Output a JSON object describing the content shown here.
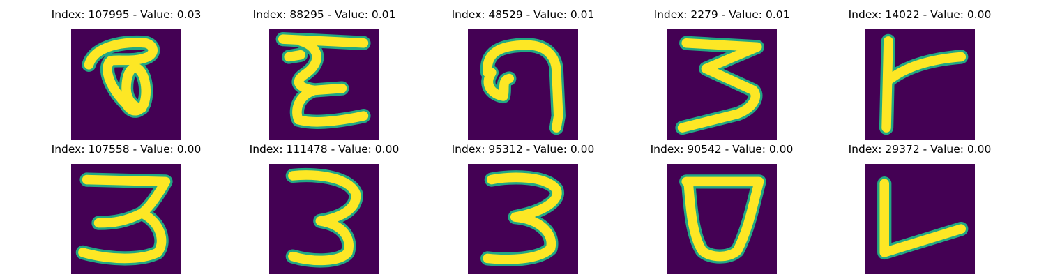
{
  "colors": {
    "background": "#440154",
    "stroke": "#fde725",
    "edge": "#22a884"
  },
  "figure": {
    "tiles": [
      {
        "title": "Index: 107995 - Value: 0.03",
        "glyph": "curl-a"
      },
      {
        "title": "Index: 88295 - Value: 0.01",
        "glyph": "sigma-e"
      },
      {
        "title": "Index: 48529 - Value: 0.01",
        "glyph": "hook-g"
      },
      {
        "title": "Index: 2279 - Value: 0.01",
        "glyph": "zigzag-3"
      },
      {
        "title": "Index: 14022 - Value: 0.00",
        "glyph": "tee-r"
      },
      {
        "title": "Index: 107558 - Value: 0.00",
        "glyph": "three-wide"
      },
      {
        "title": "Index: 111478 - Value: 0.00",
        "glyph": "three-round"
      },
      {
        "title": "Index: 95312 - Value: 0.00",
        "glyph": "three-narrow"
      },
      {
        "title": "Index: 90542 - Value: 0.00",
        "glyph": "cup-d"
      },
      {
        "title": "Index: 29372 - Value: 0.00",
        "glyph": "angle-l"
      }
    ]
  }
}
